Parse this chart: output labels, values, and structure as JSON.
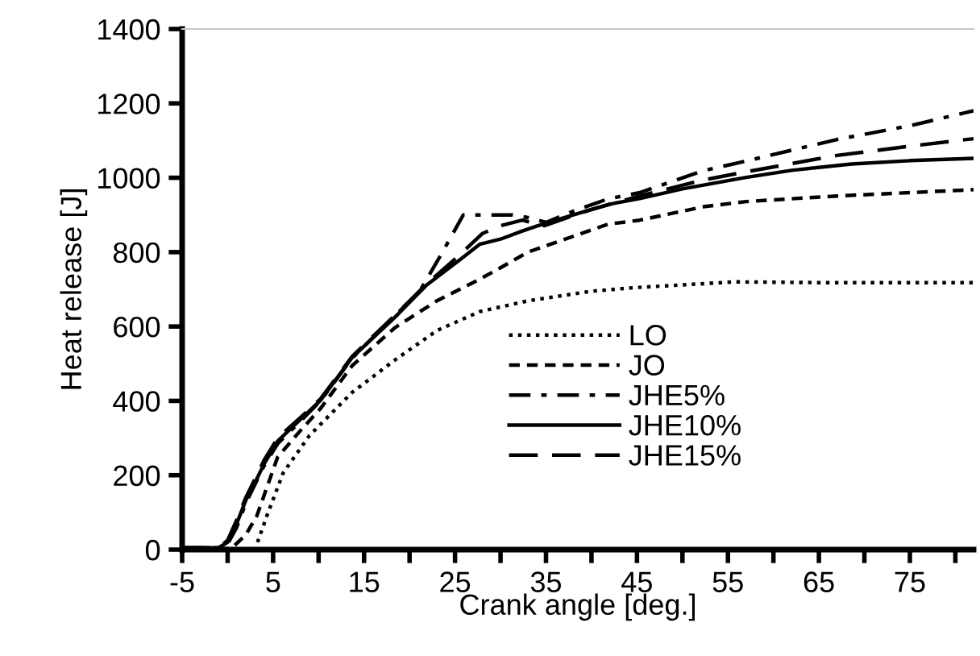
{
  "chart_data": {
    "type": "line",
    "xlabel": "Crank angle [deg.]",
    "ylabel": "Heat release [J]",
    "xlim": [
      -5,
      82
    ],
    "ylim": [
      0,
      1400
    ],
    "xticks": [
      -5,
      {
        "value": 0,
        "label": null
      },
      5,
      {
        "value": 10,
        "label": null
      },
      15,
      {
        "value": 20,
        "label": null
      },
      25,
      {
        "value": 30,
        "label": null
      },
      35,
      {
        "value": 40,
        "label": null
      },
      45,
      {
        "value": 50,
        "label": null
      },
      55,
      {
        "value": 60,
        "label": null
      },
      65,
      {
        "value": 70,
        "label": null
      },
      75,
      {
        "value": 80,
        "label": null
      }
    ],
    "yticks": [
      0,
      200,
      400,
      600,
      800,
      1000,
      1200,
      1400
    ],
    "grid": false,
    "legend": "bottom right",
    "marker": "none",
    "series": [
      {
        "name": "LO",
        "color": "#000000",
        "line_style": "dotted",
        "x": [
          -5,
          2,
          3,
          4.3,
          6.1,
          9,
          13.7,
          18.4,
          23,
          27.7,
          33,
          40,
          45,
          55.8,
          65,
          82
        ],
        "values": [
          0,
          0,
          0,
          90,
          206,
          307,
          423,
          510,
          589,
          640,
          669,
          695,
          705,
          720,
          718,
          718
        ]
      },
      {
        "name": "JO",
        "color": "#000000",
        "line_style": "dashed",
        "x": [
          -5,
          0,
          0.5,
          2,
          3.2,
          5.5,
          8,
          10.2,
          13.7,
          18.4,
          23,
          27.7,
          30,
          33,
          41.8,
          45.3,
          52.3,
          57,
          67,
          75,
          82
        ],
        "values": [
          3,
          3,
          5,
          40,
          90,
          249,
          320,
          379,
          495,
          597,
          669,
          727,
          758,
          800,
          875,
          886,
          922,
          936,
          951,
          960,
          968
        ]
      },
      {
        "name": "JHE5%",
        "color": "#000000",
        "line_style": "dashdot",
        "x": [
          -5,
          -1,
          0,
          1,
          2,
          3,
          4,
          5.5,
          8,
          10.2,
          13.7,
          18.4,
          21,
          23.6,
          25.9,
          28,
          31.3,
          33,
          35,
          38,
          41.8,
          45.3,
          52.3,
          57,
          67,
          75,
          82
        ],
        "values": [
          5,
          5,
          15,
          60,
          125,
          175,
          225,
          285,
          345,
          400,
          515,
          630,
          690,
          799,
          900,
          900,
          900,
          893,
          880,
          910,
          943,
          960,
          1019,
          1045,
          1103,
          1140,
          1180
        ]
      },
      {
        "name": "JHE10%",
        "color": "#000000",
        "line_style": "solid",
        "x": [
          -5,
          -1,
          0,
          1,
          2,
          3,
          4,
          5.5,
          8,
          10.2,
          13.7,
          18.4,
          21.9,
          25.4,
          27.7,
          30,
          32.4,
          34.1,
          38,
          42,
          45.3,
          50,
          57,
          62,
          68.6,
          75,
          82
        ],
        "values": [
          5,
          5,
          20,
          70,
          133,
          180,
          230,
          292,
          350,
          401,
          517,
          625,
          712,
          777,
          821,
          835,
          857,
          871,
          900,
          929,
          944,
          970,
          1001,
          1020,
          1037,
          1046,
          1052
        ]
      },
      {
        "name": "JHE15%",
        "color": "#000000",
        "line_style": "longdash",
        "x": [
          -5,
          -1,
          0,
          1,
          2,
          3,
          4,
          5.5,
          8,
          10.2,
          13.7,
          18.4,
          21.9,
          25.4,
          28,
          30,
          32.4,
          34.8,
          40,
          45.3,
          52.3,
          57,
          67,
          75,
          82
        ],
        "values": [
          5,
          5,
          25,
          80,
          140,
          190,
          240,
          300,
          355,
          405,
          520,
          630,
          715,
          790,
          850,
          871,
          886,
          871,
          915,
          951,
          994,
          1016,
          1060,
          1085,
          1105
        ]
      }
    ]
  }
}
